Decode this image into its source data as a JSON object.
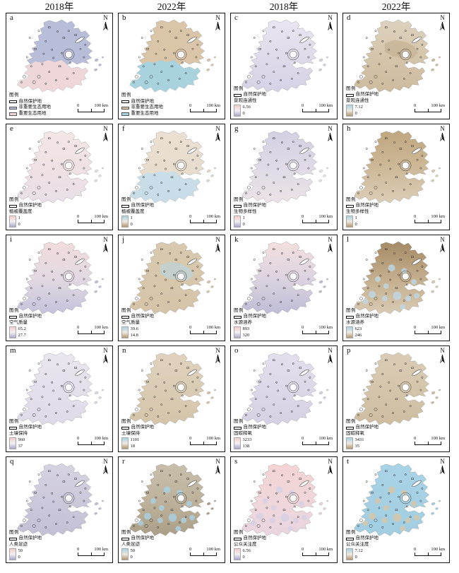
{
  "figure": {
    "column_headers": [
      "2018年",
      "2022年",
      "2018年",
      "2022年"
    ],
    "north_label": "N",
    "legend_title": "图例",
    "reserve_label": "自然保护地",
    "scale_zero": "0",
    "scale_label": "100 km",
    "ramp_2018": [
      "#f5cdcb",
      "#f3f0f3",
      "#a9a7cd"
    ],
    "ramp_2022": [
      "#a9d3e6",
      "#efe9df",
      "#b3976f"
    ],
    "panels": [
      {
        "id": "a",
        "type": "categorical",
        "items": [
          {
            "label": "非重要生态用地",
            "color": "#b8bdd9"
          },
          {
            "label": "重要生态用地",
            "color": "#f0d7d9"
          }
        ],
        "map": {
          "stops": [
            "#b8bdd9"
          ],
          "overlay": {
            "kind": "south",
            "color": "#f0d7d9"
          }
        }
      },
      {
        "id": "b",
        "type": "categorical",
        "items": [
          {
            "label": "非重要生态用地",
            "color": "#dbc5a8"
          },
          {
            "label": "重要生态用地",
            "color": "#a6d3e2"
          }
        ],
        "map": {
          "stops": [
            "#dbc5a8"
          ],
          "overlay": {
            "kind": "south",
            "color": "#a6d3e2"
          }
        }
      },
      {
        "id": "c",
        "type": "ramp",
        "variable": "景观连通性",
        "max": "6.56",
        "min": "0",
        "ramp": "ramp_2018",
        "map": {
          "stops": [
            "#e9e6f1",
            "#dfdbeb",
            "#d6d2e6"
          ],
          "overlay": null
        }
      },
      {
        "id": "d",
        "type": "ramp",
        "variable": "景观连通性",
        "max": "7.12",
        "min": "0",
        "ramp": "ramp_2022",
        "map": {
          "stops": [
            "#ded2bf",
            "#d5c5ab",
            "#cdbb9d"
          ],
          "overlay": {
            "kind": "center",
            "color": "#c2ae8c"
          }
        }
      },
      {
        "id": "e",
        "type": "ramp",
        "variable": "植被覆盖度",
        "max": "1",
        "min": "0",
        "ramp": "ramp_2018",
        "map": {
          "stops": [
            "#f4e6e6",
            "#f0e1e4",
            "#e8dfe8"
          ],
          "overlay": null
        }
      },
      {
        "id": "f",
        "type": "ramp",
        "variable": "植被覆盖度",
        "max": "1",
        "min": "0",
        "ramp": "ramp_2022",
        "map": {
          "stops": [
            "#ebe0d2",
            "#e5d9c8"
          ],
          "overlay": {
            "kind": "south",
            "color": "#c6dde9"
          }
        }
      },
      {
        "id": "g",
        "type": "ramp",
        "variable": "生物多样性",
        "max": "1",
        "min": "0",
        "ramp": "ramp_2018",
        "map": {
          "stops": [
            "#d3d0e4",
            "#dfdae6",
            "#ece3e7"
          ],
          "overlay": null
        }
      },
      {
        "id": "h",
        "type": "ramp",
        "variable": "生物多样性",
        "max": "1",
        "min": "0",
        "ramp": "ramp_2022",
        "map": {
          "stops": [
            "#bfa67f",
            "#cdb897",
            "#dccdb6"
          ],
          "overlay": null
        }
      },
      {
        "id": "i",
        "type": "ramp",
        "variable": "空气质量",
        "max": "65.2",
        "min": "27.7",
        "ramp": "ramp_2018",
        "map": {
          "stops": [
            "#f2dcdb",
            "#e3d9e2",
            "#c4c2db"
          ],
          "overlay": null
        }
      },
      {
        "id": "j",
        "type": "ramp",
        "variable": "空气质量",
        "max": "39.6",
        "min": "14.8",
        "ramp": "ramp_2022",
        "map": {
          "stops": [
            "#d9c9ae",
            "#d5c4a8"
          ],
          "overlay": {
            "kind": "center",
            "color": "#b7d5e5"
          }
        }
      },
      {
        "id": "k",
        "type": "ramp",
        "variable": "水源涵养",
        "max": "893",
        "min": "320",
        "ramp": "ramp_2018",
        "map": {
          "stops": [
            "#f4dfde",
            "#ddd4e0",
            "#bebcd6"
          ],
          "overlay": null
        }
      },
      {
        "id": "l",
        "type": "ramp",
        "variable": "水源涵养",
        "max": "623",
        "min": "246",
        "ramp": "ramp_2022",
        "map": {
          "stops": [
            "#a58a66",
            "#c3ad8c",
            "#d9cab2"
          ],
          "overlay": {
            "kind": "patches",
            "color": "#bdd8e7"
          }
        }
      },
      {
        "id": "m",
        "type": "ramp",
        "variable": "土壤保持",
        "max": "960",
        "min": "37",
        "ramp": "ramp_2018",
        "map": {
          "stops": [
            "#eae6ef",
            "#e4e0eb",
            "#dedae8"
          ],
          "overlay": null
        }
      },
      {
        "id": "n",
        "type": "ramp",
        "variable": "土壤保持",
        "max": "1101",
        "min": "18",
        "ramp": "ramp_2022",
        "map": {
          "stops": [
            "#e0d2bd",
            "#daccb4",
            "#d4c4a9"
          ],
          "overlay": null
        }
      },
      {
        "id": "o",
        "type": "ramp",
        "variable": "固碳释氧",
        "max": "3233",
        "min": "138",
        "ramp": "ramp_2018",
        "map": {
          "stops": [
            "#e3dfed",
            "#dcd8e9",
            "#d5d0e3"
          ],
          "overlay": null
        }
      },
      {
        "id": "p",
        "type": "ramp",
        "variable": "固碳释氧",
        "max": "3431",
        "min": "35",
        "ramp": "ramp_2022",
        "map": {
          "stops": [
            "#dbccb6",
            "#d4c5ab",
            "#cebda0"
          ],
          "overlay": null
        }
      },
      {
        "id": "q",
        "type": "ramp",
        "variable": "人类足迹",
        "max": "50",
        "min": "0",
        "ramp": "ramp_2018",
        "map": {
          "stops": [
            "#d6d3e3",
            "#cdc9dc",
            "#c3bfd5"
          ],
          "overlay": null
        }
      },
      {
        "id": "r",
        "type": "ramp",
        "variable": "人类足迹",
        "max": "50",
        "min": "0",
        "ramp": "ramp_2022",
        "map": {
          "stops": [
            "#c8bfab",
            "#beb29c",
            "#ab9f87"
          ],
          "overlay": {
            "kind": "patches",
            "color": "#a8d1e3"
          }
        }
      },
      {
        "id": "s",
        "type": "ramp",
        "variable": "公众关注度",
        "max": "6.56",
        "min": "0",
        "ramp": "ramp_2018",
        "map": {
          "stops": [
            "#f4d4d4",
            "#f0d6da",
            "#e9d5e0"
          ],
          "overlay": {
            "kind": "patches",
            "color": "#d5d0e4"
          }
        }
      },
      {
        "id": "t",
        "type": "ramp",
        "variable": "公众关注度",
        "max": "7.12",
        "min": "0",
        "ramp": "ramp_2022",
        "map": {
          "stops": [
            "#a9d3e6",
            "#a2cee2"
          ],
          "overlay": {
            "kind": "patches",
            "color": "#d8c5a6"
          }
        }
      }
    ]
  }
}
